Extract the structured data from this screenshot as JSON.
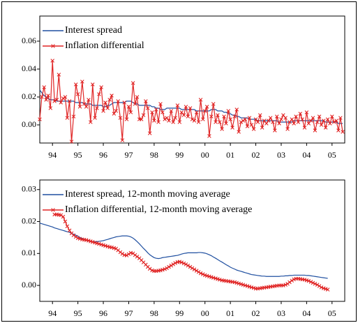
{
  "chart_data": [
    {
      "type": "line",
      "legend": "top-left",
      "xlim": [
        1994,
        2006
      ],
      "ylim": [
        -0.013,
        0.078
      ],
      "yticks": [
        {
          "value": 0,
          "label": "0.00"
        },
        0.02,
        0.04,
        0.06
      ],
      "xticks": [
        {
          "value": 1994.5,
          "label": "94"
        },
        {
          "value": 1995.5,
          "label": "95"
        },
        {
          "value": 1996.5,
          "label": "96"
        },
        {
          "value": 1997.5,
          "label": "97"
        },
        {
          "value": 1998.5,
          "label": "98"
        },
        {
          "value": 1999.5,
          "label": "99"
        },
        {
          "value": 2000.5,
          "label": "00"
        },
        {
          "value": 2001.5,
          "label": "01"
        },
        {
          "value": 2002.5,
          "label": "02"
        },
        {
          "value": 2003.5,
          "label": "03"
        },
        {
          "value": 2004.5,
          "label": "04"
        },
        {
          "value": 2005.5,
          "label": "05"
        }
      ],
      "x": [
        1994,
        1994.08,
        1994.17,
        1994.25,
        1994.33,
        1994.42,
        1994.5,
        1994.58,
        1994.67,
        1994.75,
        1994.83,
        1994.92,
        1995,
        1995.08,
        1995.17,
        1995.25,
        1995.33,
        1995.42,
        1995.5,
        1995.58,
        1995.67,
        1995.75,
        1995.83,
        1995.92,
        1996,
        1996.08,
        1996.17,
        1996.25,
        1996.33,
        1996.42,
        1996.5,
        1996.58,
        1996.67,
        1996.75,
        1996.83,
        1996.92,
        1997,
        1997.08,
        1997.17,
        1997.25,
        1997.33,
        1997.42,
        1997.5,
        1997.58,
        1997.67,
        1997.75,
        1997.83,
        1997.92,
        1998,
        1998.08,
        1998.17,
        1998.25,
        1998.33,
        1998.42,
        1998.5,
        1998.58,
        1998.67,
        1998.75,
        1998.83,
        1998.92,
        1999,
        1999.08,
        1999.17,
        1999.25,
        1999.33,
        1999.42,
        1999.5,
        1999.58,
        1999.67,
        1999.75,
        1999.83,
        1999.92,
        2000,
        2000.08,
        2000.17,
        2000.25,
        2000.33,
        2000.42,
        2000.5,
        2000.58,
        2000.67,
        2000.75,
        2000.83,
        2000.92,
        2001,
        2001.08,
        2001.17,
        2001.25,
        2001.33,
        2001.42,
        2001.5,
        2001.58,
        2001.67,
        2001.75,
        2001.83,
        2001.92,
        2002,
        2002.08,
        2002.17,
        2002.25,
        2002.33,
        2002.42,
        2002.5,
        2002.58,
        2002.67,
        2002.75,
        2002.83,
        2002.92,
        2003,
        2003.08,
        2003.17,
        2003.25,
        2003.33,
        2003.42,
        2003.5,
        2003.58,
        2003.67,
        2003.75,
        2003.83,
        2003.92,
        2004,
        2004.08,
        2004.17,
        2004.25,
        2004.33,
        2004.42,
        2004.5,
        2004.58,
        2004.67,
        2004.75,
        2004.83,
        2004.92,
        2005,
        2005.08,
        2005.17,
        2005.25,
        2005.33,
        2005.42,
        2005.5,
        2005.58,
        2005.67,
        2005.75,
        2005.83,
        2005.92
      ],
      "series": [
        {
          "name": "Interest spread",
          "color": "#1f4fa0",
          "marker": "none",
          "values": [
            0.025,
            0.023,
            0.021,
            0.02,
            0.019,
            0.018,
            0.018,
            0.018,
            0.017,
            0.017,
            0.017,
            0.017,
            0.017,
            0.017,
            0.017,
            0.017,
            0.017,
            0.016,
            0.016,
            0.016,
            0.016,
            0.015,
            0.015,
            0.015,
            0.015,
            0.014,
            0.014,
            0.014,
            0.014,
            0.014,
            0.013,
            0.013,
            0.014,
            0.014,
            0.015,
            0.016,
            0.016,
            0.016,
            0.016,
            0.016,
            0.016,
            0.017,
            0.017,
            0.017,
            0.016,
            0.015,
            0.015,
            0.014,
            0.014,
            0.014,
            0.014,
            0.014,
            0.014,
            0.013,
            0.013,
            0.012,
            0.012,
            0.011,
            0.011,
            0.011,
            0.012,
            0.012,
            0.012,
            0.012,
            0.012,
            0.012,
            0.012,
            0.011,
            0.011,
            0.011,
            0.011,
            0.011,
            0.011,
            0.011,
            0.01,
            0.01,
            0.01,
            0.01,
            0.01,
            0.01,
            0.01,
            0.011,
            0.011,
            0.011,
            0.01,
            0.01,
            0.01,
            0.009,
            0.009,
            0.008,
            0.008,
            0.007,
            0.007,
            0.006,
            0.006,
            0.005,
            0.005,
            0.005,
            0.005,
            0.004,
            0.004,
            0.004,
            0.004,
            0.003,
            0.003,
            0.003,
            0.003,
            0.003,
            0.003,
            0.003,
            0.003,
            0.003,
            0.003,
            0.002,
            0.002,
            0.002,
            0.002,
            0.002,
            0.002,
            0.002,
            0.003,
            0.003,
            0.003,
            0.003,
            0.003,
            0.003,
            0.003,
            0.003,
            0.003,
            0.003,
            0.003,
            0.003,
            0.003,
            0.003,
            0.003,
            0.002,
            0.002,
            0.002,
            0.002,
            0.002,
            0.002,
            0.001,
            0.001,
            0.001
          ]
        },
        {
          "name": "Inflation differential",
          "color": "#e02424",
          "marker": "x",
          "values": [
            0.004,
            0.02,
            0.027,
            0.018,
            0.021,
            0.012,
            0.046,
            0.017,
            0.018,
            0.036,
            0.016,
            0.019,
            0.02,
            0.005,
            0.017,
            -0.012,
            0.006,
            0.029,
            0.022,
            0.013,
            0.031,
            0.015,
            0.013,
            0.018,
            0.002,
            0.029,
            0.005,
            0.012,
            0.022,
            0.027,
            0.01,
            0.016,
            0.012,
            0.018,
            0.021,
            0.008,
            0.01,
            0.017,
            0.005,
            -0.011,
            0.016,
            0.004,
            0.013,
            0.009,
            0.03,
            0.015,
            0.02,
            0.004,
            0.004,
            0.007,
            0.017,
            0.012,
            -0.006,
            0.009,
            0.003,
            0.011,
            0.002,
            0.015,
            0.009,
            0.004,
            0.005,
            0.003,
            0.01,
            0.002,
            0.005,
            0.014,
            0.002,
            0.009,
            0.007,
            0.013,
            0.006,
            0.012,
            0.004,
            0.003,
            0.009,
            0.002,
            0.018,
            0.004,
            0.01,
            0.013,
            -0.008,
            0.006,
            0.015,
            0.002,
            0.007,
            0.002,
            -0.003,
            0.006,
            0.001,
            0.01,
            0.004,
            -0.002,
            0.006,
            0.011,
            -0.005,
            0.002,
            0.003,
            0.004,
            -0.001,
            0.005,
            0,
            -0.003,
            0.004,
            0.002,
            0.007,
            -0.002,
            0.003,
            0.001,
            0.003,
            0.005,
            0.002,
            -0.004,
            0.006,
            0.001,
            0.004,
            0.007,
            0.005,
            -0.003,
            0.002,
            0.004,
            0.001,
            0.006,
            0.002,
            0.008,
            0.004,
            -0.002,
            0.009,
            0.001,
            0.003,
            0.005,
            -0.004,
            0.002,
            0.006,
            0,
            0.003,
            -0.002,
            0.004,
            0.001,
            0.006,
            0.002,
            0.003,
            -0.004,
            0.005,
            -0.005
          ]
        }
      ]
    },
    {
      "type": "line",
      "legend": "top-left",
      "xlim": [
        1994,
        2006
      ],
      "ylim": [
        -0.005,
        0.033
      ],
      "yticks": [
        {
          "value": 0,
          "label": "0.00"
        },
        0.01,
        0.02,
        0.03
      ],
      "xticks": [
        {
          "value": 1994.5,
          "label": "94"
        },
        {
          "value": 1995.5,
          "label": "95"
        },
        {
          "value": 1996.5,
          "label": "96"
        },
        {
          "value": 1997.5,
          "label": "97"
        },
        {
          "value": 1998.5,
          "label": "98"
        },
        {
          "value": 1999.5,
          "label": "99"
        },
        {
          "value": 2000.5,
          "label": "00"
        },
        {
          "value": 2001.5,
          "label": "01"
        },
        {
          "value": 2002.5,
          "label": "02"
        },
        {
          "value": 2003.5,
          "label": "03"
        },
        {
          "value": 2004.5,
          "label": "04"
        },
        {
          "value": 2005.5,
          "label": "05"
        }
      ],
      "x": [
        1994,
        1994.08,
        1994.17,
        1994.25,
        1994.33,
        1994.42,
        1994.5,
        1994.58,
        1994.67,
        1994.75,
        1994.83,
        1994.92,
        1995,
        1995.08,
        1995.17,
        1995.25,
        1995.33,
        1995.42,
        1995.5,
        1995.58,
        1995.67,
        1995.75,
        1995.83,
        1995.92,
        1996,
        1996.08,
        1996.17,
        1996.25,
        1996.33,
        1996.42,
        1996.5,
        1996.58,
        1996.67,
        1996.75,
        1996.83,
        1996.92,
        1997,
        1997.08,
        1997.17,
        1997.25,
        1997.33,
        1997.42,
        1997.5,
        1997.58,
        1997.67,
        1997.75,
        1997.83,
        1997.92,
        1998,
        1998.08,
        1998.17,
        1998.25,
        1998.33,
        1998.42,
        1998.5,
        1998.58,
        1998.67,
        1998.75,
        1998.83,
        1998.92,
        1999,
        1999.08,
        1999.17,
        1999.25,
        1999.33,
        1999.42,
        1999.5,
        1999.58,
        1999.67,
        1999.75,
        1999.83,
        1999.92,
        2000,
        2000.08,
        2000.17,
        2000.25,
        2000.33,
        2000.42,
        2000.5,
        2000.58,
        2000.67,
        2000.75,
        2000.83,
        2000.92,
        2001,
        2001.08,
        2001.17,
        2001.25,
        2001.33,
        2001.42,
        2001.5,
        2001.58,
        2001.67,
        2001.75,
        2001.83,
        2001.92,
        2002,
        2002.08,
        2002.17,
        2002.25,
        2002.33,
        2002.42,
        2002.5,
        2002.58,
        2002.67,
        2002.75,
        2002.83,
        2002.92,
        2003,
        2003.08,
        2003.17,
        2003.25,
        2003.33,
        2003.42,
        2003.5,
        2003.58,
        2003.67,
        2003.75,
        2003.83,
        2003.92,
        2004,
        2004.08,
        2004.17,
        2004.25,
        2004.33,
        2004.42,
        2004.5,
        2004.58,
        2004.67,
        2004.75,
        2004.83,
        2004.92,
        2005,
        2005.08,
        2005.17,
        2005.25,
        2005.33,
        2005.42,
        2005.5,
        2005.58,
        2005.67,
        2005.75,
        2005.83,
        2005.92
      ],
      "series": [
        {
          "name": "Interest spread, 12-month moving average",
          "color": "#1f4fa0",
          "marker": "none",
          "values": [
            0.0195,
            0.0193,
            0.0191,
            0.0189,
            0.0187,
            0.0185,
            0.0183,
            0.018,
            0.0178,
            0.0176,
            0.0174,
            0.0172,
            0.017,
            0.0168,
            0.0166,
            0.0163,
            0.016,
            0.0157,
            0.0154,
            0.015,
            0.0147,
            0.0144,
            0.0141,
            0.0139,
            0.0138,
            0.0137,
            0.0137,
            0.0137,
            0.0138,
            0.0139,
            0.014,
            0.0142,
            0.0144,
            0.0146,
            0.0148,
            0.015,
            0.0152,
            0.0153,
            0.0154,
            0.0155,
            0.0155,
            0.0155,
            0.0154,
            0.0152,
            0.0148,
            0.0143,
            0.0137,
            0.013,
            0.0123,
            0.0116,
            0.0109,
            0.0102,
            0.0096,
            0.0091,
            0.0087,
            0.0085,
            0.0084,
            0.0085,
            0.0087,
            0.0088,
            0.0089,
            0.009,
            0.0091,
            0.0092,
            0.0093,
            0.0094,
            0.0096,
            0.0098,
            0.01,
            0.0101,
            0.0102,
            0.0102,
            0.0102,
            0.0102,
            0.0102,
            0.0103,
            0.0103,
            0.0102,
            0.0101,
            0.0099,
            0.0096,
            0.0093,
            0.0089,
            0.0085,
            0.0081,
            0.0077,
            0.0073,
            0.0069,
            0.0065,
            0.0061,
            0.0057,
            0.0054,
            0.0051,
            0.0048,
            0.0046,
            0.0044,
            0.0042,
            0.004,
            0.0038,
            0.0036,
            0.0034,
            0.0033,
            0.0032,
            0.0031,
            0.003,
            0.0029,
            0.0029,
            0.0028,
            0.0028,
            0.0028,
            0.0028,
            0.0028,
            0.0028,
            0.0028,
            0.0029,
            0.0029,
            0.003,
            0.003,
            0.0031,
            0.0031,
            0.0032,
            0.0032,
            0.0032,
            0.0032,
            0.0032,
            0.0032,
            0.0031,
            0.0031,
            0.003,
            0.0029,
            0.0028,
            0.0027,
            0.0026,
            0.0025,
            0.0024,
            0.0023,
            0.0022,
            null,
            null,
            null,
            null,
            null,
            null,
            null
          ]
        },
        {
          "name": "Inflation differential, 12-month moving average",
          "color": "#e02424",
          "marker": "x",
          "values": [
            null,
            null,
            null,
            null,
            null,
            null,
            null,
            0.0222,
            0.0222,
            0.0221,
            0.022,
            0.0215,
            0.02,
            0.0185,
            0.0172,
            0.0163,
            0.0157,
            0.0152,
            0.0148,
            0.0146,
            0.0144,
            0.0143,
            0.0142,
            0.014,
            0.0138,
            0.0136,
            0.0134,
            0.0132,
            0.013,
            0.0128,
            0.0126,
            0.0124,
            0.0122,
            0.012,
            0.0119,
            0.0117,
            0.0115,
            0.011,
            0.0104,
            0.0099,
            0.0095,
            0.0094,
            0.0098,
            0.0102,
            0.01,
            0.0095,
            0.009,
            0.0085,
            0.0079,
            0.0072,
            0.0065,
            0.0058,
            0.0052,
            0.0047,
            0.0045,
            0.0045,
            0.0046,
            0.0047,
            0.0049,
            0.0051,
            0.0054,
            0.0058,
            0.0062,
            0.0066,
            0.007,
            0.0073,
            0.0074,
            0.0072,
            0.0069,
            0.0066,
            0.0062,
            0.0058,
            0.0054,
            0.005,
            0.0046,
            0.0042,
            0.0038,
            0.0035,
            0.0032,
            0.003,
            0.0028,
            0.0026,
            0.0024,
            0.0022,
            0.002,
            0.0018,
            0.0016,
            0.0015,
            0.0014,
            0.0013,
            0.0012,
            0.0011,
            0.001,
            0.0008,
            0.0006,
            0.0004,
            0.0002,
            0,
            -0.0002,
            -0.0004,
            -0.0006,
            -0.0008,
            -0.001,
            -0.001,
            -0.0009,
            -0.0008,
            -0.0007,
            -0.0006,
            -0.0005,
            -0.0004,
            -0.0003,
            -0.0002,
            -0.0001,
            0,
            0,
            0,
            0.0002,
            0.0005,
            0.001,
            0.0015,
            0.0019,
            0.0021,
            0.0021,
            0.002,
            0.0019,
            0.0018,
            0.0016,
            0.0014,
            0.0011,
            0.0008,
            0.0005,
            0.0002,
            -0.0002,
            -0.0006,
            -0.0009,
            -0.0011,
            -0.0013,
            null,
            null,
            null,
            null,
            null,
            null,
            null
          ]
        }
      ]
    }
  ]
}
